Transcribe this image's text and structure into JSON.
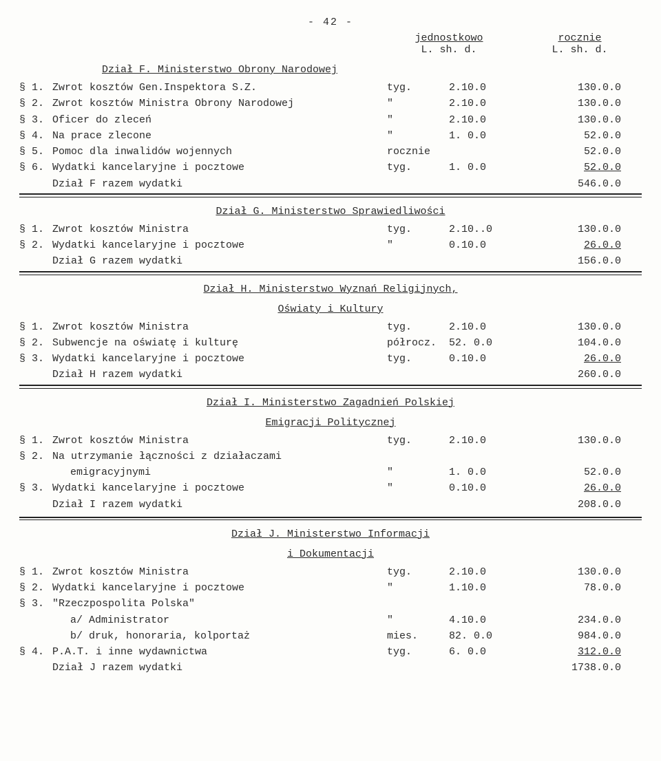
{
  "page_number": "- 42 -",
  "column_headers": {
    "c1_title": "jednostkowo",
    "c2_title": "rocznie",
    "sub": "L. sh. d."
  },
  "sections": {
    "F": {
      "heading": "Dział F. Ministerstwo Obrony Narodowej",
      "rows": [
        {
          "num": "§ 1.",
          "desc": "Zwrot kosztów Gen.Inspektora S.Z.",
          "unit": "tyg.",
          "c1": "2.10.0",
          "c2": "130.0.0"
        },
        {
          "num": "§ 2.",
          "desc": "Zwrot kosztów Ministra Obrony Narodowej",
          "unit": "\"",
          "c1": "2.10.0",
          "c2": "130.0.0"
        },
        {
          "num": "§ 3.",
          "desc": "Oficer do zleceń",
          "unit": "\"",
          "c1": "2.10.0",
          "c2": "130.0.0"
        },
        {
          "num": "§ 4.",
          "desc": "Na prace zlecone",
          "unit": "\"",
          "c1": "1. 0.0",
          "c2": "52.0.0"
        },
        {
          "num": "§ 5.",
          "desc": "Pomoc dla inwalidów wojennych",
          "unit": "rocznie",
          "c1": "",
          "c2": "52.0.0"
        },
        {
          "num": "§ 6.",
          "desc": "Wydatki kancelaryjne i pocztowe",
          "unit": "tyg.",
          "c1": "1. 0.0",
          "c2": "52.0.0",
          "c2_underline": true
        }
      ],
      "sum": {
        "desc": "Dział F razem wydatki",
        "c2": "546.0.0"
      }
    },
    "G": {
      "heading": "Dział G. Ministerstwo Sprawiedliwości",
      "rows": [
        {
          "num": "§ 1.",
          "desc": "Zwrot kosztów Ministra",
          "unit": "tyg.",
          "c1": "2.10..0",
          "c2": "130.0.0"
        },
        {
          "num": "§ 2.",
          "desc": "Wydatki kancelaryjne i pocztowe",
          "unit": "\"",
          "c1": "0.10.0",
          "c2": "26.0.0",
          "c2_underline": true
        }
      ],
      "sum": {
        "desc": "Dział G razem wydatki",
        "c2": "156.0.0"
      }
    },
    "H": {
      "heading": "Dział H. Ministerstwo Wyznań Religijnych,",
      "heading2": "Oświaty i Kultury",
      "rows": [
        {
          "num": "§ 1.",
          "desc": "Zwrot kosztów Ministra",
          "unit": "tyg.",
          "c1": "2.10.0",
          "c2": "130.0.0"
        },
        {
          "num": "§ 2.",
          "desc": "Subwencje na oświatę i kulturę",
          "unit": "półrocz.",
          "c1": "52. 0.0",
          "c2": "104.0.0"
        },
        {
          "num": "§ 3.",
          "desc": "Wydatki kancelaryjne i pocztowe",
          "unit": "tyg.",
          "c1": "0.10.0",
          "c2": "26.0.0",
          "c2_underline": true
        }
      ],
      "sum": {
        "desc": "Dział H razem wydatki",
        "c2": "260.0.0"
      }
    },
    "I": {
      "heading": "Dział I. Ministerstwo Zagadnień Polskiej",
      "heading2": "Emigracji Politycznej",
      "rows": [
        {
          "num": "§ 1.",
          "desc": "Zwrot kosztów Ministra",
          "unit": "tyg.",
          "c1": "2.10.0",
          "c2": "130.0.0"
        },
        {
          "num": "§ 2.",
          "desc": "Na utrzymanie łączności z działaczami",
          "desc2": "emigracyjnymi",
          "unit": "\"",
          "c1": "1. 0.0",
          "c2": "52.0.0"
        },
        {
          "num": "§ 3.",
          "desc": "Wydatki kancelaryjne i pocztowe",
          "unit": "\"",
          "c1": "0.10.0",
          "c2": "26.0.0",
          "c2_underline": true
        }
      ],
      "sum": {
        "desc": "Dział I razem wydatki",
        "c2": "208.0.0"
      }
    },
    "J": {
      "heading": "Dział J. Ministerstwo Informacji",
      "heading2": "i Dokumentacji",
      "rows": [
        {
          "num": "§ 1.",
          "desc": "Zwrot kosztów Ministra",
          "unit": "tyg.",
          "c1": "2.10.0",
          "c2": "130.0.0"
        },
        {
          "num": "§ 2.",
          "desc": "Wydatki kancelaryjne i pocztowe",
          "unit": "\"",
          "c1": "1.10.0",
          "c2": "78.0.0"
        },
        {
          "num": "§ 3.",
          "desc": "\"Rzeczpospolita Polska\"",
          "unit": "",
          "c1": "",
          "c2": ""
        },
        {
          "num": "",
          "desc": "a/ Administrator",
          "indent": true,
          "unit": "\"",
          "c1": "4.10.0",
          "c2": "234.0.0"
        },
        {
          "num": "",
          "desc": "b/ druk, honoraria, kolportaż",
          "indent": true,
          "unit": "mies.",
          "c1": "82. 0.0",
          "c2": "984.0.0"
        },
        {
          "num": "§ 4.",
          "desc": "P.A.T. i inne wydawnictwa",
          "unit": "tyg.",
          "c1": "6. 0.0",
          "c2": "312.0.0",
          "c2_underline": true
        }
      ],
      "sum": {
        "desc": "Dział J razem wydatki",
        "c2": "1738.0.0"
      }
    }
  }
}
